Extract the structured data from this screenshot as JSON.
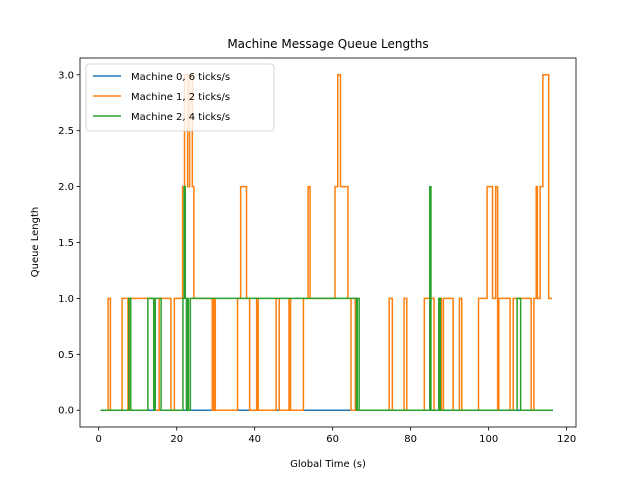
{
  "chart_data": {
    "type": "line",
    "title": "Machine Message Queue Lengths",
    "xlabel": "Global Time (s)",
    "ylabel": "Queue Length",
    "xlim": [
      -4.8,
      122.4
    ],
    "ylim": [
      -0.15,
      3.15
    ],
    "xticks": [
      0,
      20,
      40,
      60,
      80,
      100,
      120
    ],
    "xtick_labels": [
      "0",
      "20",
      "40",
      "60",
      "80",
      "100",
      "120"
    ],
    "yticks": [
      0.0,
      0.5,
      1.0,
      1.5,
      2.0,
      2.5,
      3.0
    ],
    "ytick_labels": [
      "0.0",
      "0.5",
      "1.0",
      "1.5",
      "2.0",
      "2.5",
      "3.0"
    ],
    "grid": false,
    "legend_position": "top-left",
    "series": [
      {
        "name": "Machine 0, 6 ticks/s",
        "color": "#1f77b4",
        "x": [
          0.5,
          116.5
        ],
        "y": [
          0,
          0
        ]
      },
      {
        "name": "Machine 1, 2 ticks/s",
        "color": "#ff7f0e",
        "x": [
          0.5,
          2.4,
          3.0,
          6.0,
          7.5,
          8.0,
          14.2,
          15.5,
          18.5,
          19.4,
          21.5,
          22.0,
          22.8,
          23.3,
          24.0,
          24.4,
          26.4,
          27.0,
          29.1,
          29.5,
          29.9,
          35.6,
          36.4,
          37.9,
          38.7,
          40.5,
          40.9,
          45.5,
          46.3,
          48.8,
          49.2,
          52.5,
          53.7,
          54.2,
          60.6,
          61.3,
          62.0,
          63.9,
          64.7,
          65.8,
          66.2,
          74.5,
          75.3,
          78.3,
          79.0,
          83.5,
          86.0,
          87.3,
          87.9,
          88.4,
          90.9,
          92.5,
          93.1,
          97.4,
          99.6,
          101.0,
          101.8,
          102.3,
          102.6,
          105.5,
          106.3,
          110.9,
          111.6,
          112.2,
          112.5,
          113.2,
          113.9,
          115.4,
          116.3
        ],
        "y": [
          0,
          1,
          0,
          1,
          0,
          1,
          0,
          1,
          0,
          1,
          2,
          3,
          2,
          3,
          2,
          1,
          1,
          1,
          0,
          1,
          0,
          1,
          2,
          1,
          0,
          1,
          0,
          1,
          0,
          1,
          0,
          1,
          2,
          1,
          2,
          3,
          2,
          1,
          0,
          1,
          0,
          1,
          0,
          1,
          0,
          1,
          0,
          1,
          0,
          1,
          0,
          1,
          0,
          1,
          2,
          1,
          2,
          0,
          1,
          0,
          1,
          0,
          1,
          2,
          1,
          2,
          3,
          1,
          1
        ]
      },
      {
        "name": "Machine 2, 4 ticks/s",
        "color": "#2ca02c",
        "x": [
          0.5,
          7.7,
          8.2,
          12.6,
          14.1,
          14.5,
          16.0,
          21.6,
          21.9,
          22.2,
          22.5,
          22.8,
          23.0,
          23.5,
          65.6,
          66.1,
          66.3,
          66.8,
          84.9,
          85.2,
          85.4,
          87.2,
          87.6,
          107.3,
          108.2,
          109.0,
          116.3
        ],
        "y": [
          0,
          1,
          0,
          1,
          0,
          1,
          0,
          1,
          2,
          1,
          0,
          1,
          0,
          1,
          1,
          0,
          1,
          0,
          2,
          0,
          0,
          1,
          0,
          1,
          0,
          0,
          0
        ]
      }
    ]
  }
}
